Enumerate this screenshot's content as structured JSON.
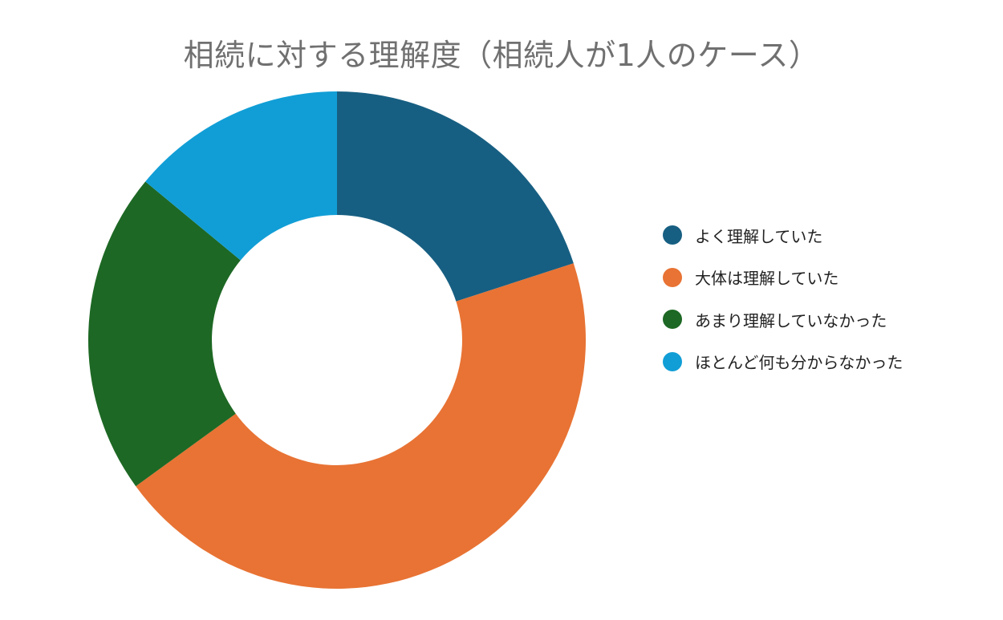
{
  "chart_data": {
    "type": "pie",
    "style": "donut",
    "title": "相続に対する理解度（相続人が1人のケース）",
    "legend_position": "right",
    "series": [
      {
        "name": "よく理解していた",
        "value": 20,
        "color": "#175F82"
      },
      {
        "name": "大体は理解していた",
        "value": 45,
        "color": "#E87334"
      },
      {
        "name": "あまり理解していなかった",
        "value": 21,
        "color": "#1D6824"
      },
      {
        "name": "ほとんど何も分からなかった",
        "value": 14,
        "color": "#119ED6"
      }
    ]
  }
}
